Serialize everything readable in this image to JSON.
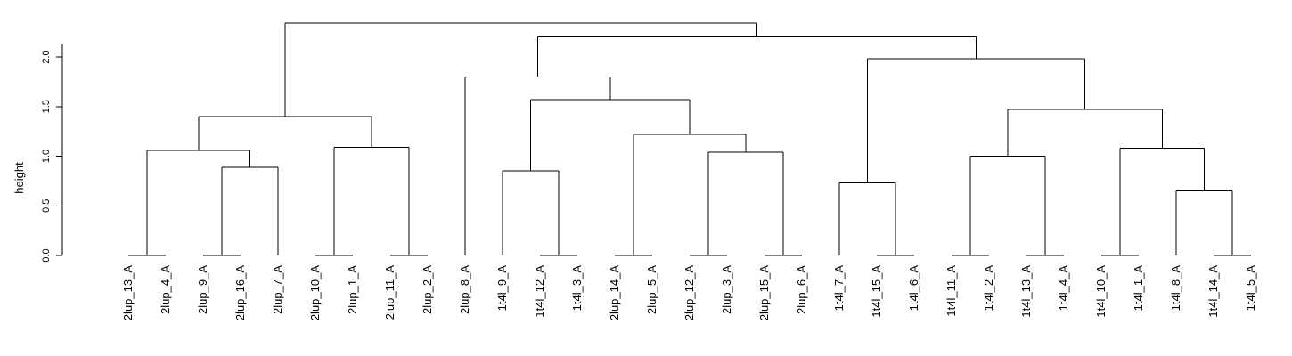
{
  "chart_data": {
    "type": "dendrogram",
    "ylabel": "height",
    "ylim": [
      0,
      2.35
    ],
    "yticks": [
      "0.0",
      "0.5",
      "1.0",
      "1.5",
      "2.0"
    ],
    "leaves": [
      "2lup_13_A",
      "2lup_4_A",
      "2lup_9_A",
      "2lup_16_A",
      "2lup_7_A",
      "2lup_10_A",
      "2lup_1_A",
      "2lup_11_A",
      "2lup_2_A",
      "2lup_8_A",
      "1t4l_9_A",
      "1t4l_12_A",
      "1t4l_3_A",
      "2lup_14_A",
      "2lup_5_A",
      "2lup_12_A",
      "2lup_3_A",
      "2lup_15_A",
      "2lup_6_A",
      "1t4l_7_A",
      "1t4l_15_A",
      "1t4l_6_A",
      "1t4l_11_A",
      "1t4l_2_A",
      "1t4l_13_A",
      "1t4l_4_A",
      "1t4l_10_A",
      "1t4l_1_A",
      "1t4l_8_A",
      "1t4l_14_A",
      "1t4l_5_A"
    ],
    "merges": [
      {
        "left": "2lup_9_A",
        "right": "2lup_16_A",
        "height": 0.0
      },
      {
        "left": "2lup_10_A",
        "right": "2lup_1_A",
        "height": 0.0
      },
      {
        "left": "2lup_11_A",
        "right": "2lup_2_A",
        "height": 0.0
      },
      {
        "left": "2lup_13_A",
        "right": "2lup_4_A",
        "height": 0.0
      },
      {
        "left": "1t4l_12_A",
        "right": "1t4l_3_A",
        "height": 0.0
      },
      {
        "left": "2lup_14_A",
        "right": "2lup_5_A",
        "height": 0.0
      },
      {
        "left": "2lup_12_A",
        "right": "2lup_3_A",
        "height": 0.0
      },
      {
        "left": "2lup_15_A",
        "right": "2lup_6_A",
        "height": 0.0
      },
      {
        "left": "1t4l_15_A",
        "right": "1t4l_6_A",
        "height": 0.0
      },
      {
        "left": "1t4l_11_A",
        "right": "1t4l_2_A",
        "height": 0.0
      },
      {
        "left": "1t4l_13_A",
        "right": "1t4l_4_A",
        "height": 0.0
      },
      {
        "left": "1t4l_10_A",
        "right": "1t4l_1_A",
        "height": 0.0
      },
      {
        "left": "1t4l_14_A",
        "right": "1t4l_5_A",
        "height": 0.0
      },
      {
        "left": "1t4l_8_A",
        "right": "1t4l_14_A+1t4l_5_A",
        "height": 0.65
      },
      {
        "left": "1t4l_7_A",
        "right": "1t4l_15_A+1t4l_6_A",
        "height": 0.73
      },
      {
        "left": "1t4l_9_A",
        "right": "1t4l_12_A+1t4l_3_A",
        "height": 0.85
      },
      {
        "left": "2lup_9_A+2lup_16_A",
        "right": "2lup_7_A",
        "height": 0.89
      },
      {
        "left": "1t4l_11_A+1t4l_2_A",
        "right": "1t4l_13_A+1t4l_4_A",
        "height": 1.0
      },
      {
        "left": "2lup_12_A+2lup_3_A",
        "right": "2lup_15_A+2lup_6_A",
        "height": 1.04
      },
      {
        "left": "2lup_13_A+2lup_4_A",
        "right": "2lup_9_A+2lup_16_A+2lup_7_A",
        "height": 1.06
      },
      {
        "left": "1t4l_10_A+1t4l_1_A",
        "right": "1t4l_8_A+1t4l_14_A+1t4l_5_A",
        "height": 1.08
      },
      {
        "left": "2lup_10_A+2lup_1_A",
        "right": "2lup_11_A+2lup_2_A",
        "height": 1.09
      },
      {
        "left": "2lup_14_A+2lup_5_A",
        "right": "2lup_12_A+2lup_3_A+2lup_15_A+2lup_6_A",
        "height": 1.22
      },
      {
        "left": "2lup_13_A..2lup_7_A",
        "right": "2lup_10_A..2lup_2_A",
        "height": 1.4
      },
      {
        "left": "1t4l_11_A..1t4l_4_A",
        "right": "1t4l_10_A..1t4l_5_A",
        "height": 1.47
      },
      {
        "left": "1t4l_9_A..1t4l_3_A",
        "right": "2lup_14_A..2lup_6_A",
        "height": 1.57
      },
      {
        "left": "2lup_8_A",
        "right": "1t4l_9_A..2lup_6_A",
        "height": 1.8
      },
      {
        "left": "1t4l_7_A..1t4l_6_A",
        "right": "1t4l_11_A..1t4l_5_A",
        "height": 1.98
      },
      {
        "left": "2lup_8_A..2lup_6_A",
        "right": "1t4l_7_A..1t4l_5_A",
        "height": 2.2
      },
      {
        "left": "2lup_13_A..2lup_2_A",
        "right": "2lup_8_A..1t4l_5_A",
        "height": 2.34
      }
    ],
    "tree": {
      "h": 2.34,
      "c": [
        {
          "h": 1.4,
          "c": [
            {
              "h": 1.06,
              "c": [
                {
                  "h": 0.0,
                  "c": [
                    "2lup_13_A",
                    "2lup_4_A"
                  ]
                },
                {
                  "h": 0.89,
                  "c": [
                    {
                      "h": 0.0,
                      "c": [
                        "2lup_9_A",
                        "2lup_16_A"
                      ]
                    },
                    "2lup_7_A"
                  ]
                }
              ]
            },
            {
              "h": 1.09,
              "c": [
                {
                  "h": 0.0,
                  "c": [
                    "2lup_10_A",
                    "2lup_1_A"
                  ]
                },
                {
                  "h": 0.0,
                  "c": [
                    "2lup_11_A",
                    "2lup_2_A"
                  ]
                }
              ]
            }
          ]
        },
        {
          "h": 2.2,
          "c": [
            {
              "h": 1.8,
              "c": [
                "2lup_8_A",
                {
                  "h": 1.57,
                  "c": [
                    {
                      "h": 0.85,
                      "c": [
                        "1t4l_9_A",
                        {
                          "h": 0.0,
                          "c": [
                            "1t4l_12_A",
                            "1t4l_3_A"
                          ]
                        }
                      ]
                    },
                    {
                      "h": 1.22,
                      "c": [
                        {
                          "h": 0.0,
                          "c": [
                            "2lup_14_A",
                            "2lup_5_A"
                          ]
                        },
                        {
                          "h": 1.04,
                          "c": [
                            {
                              "h": 0.0,
                              "c": [
                                "2lup_12_A",
                                "2lup_3_A"
                              ]
                            },
                            {
                              "h": 0.0,
                              "c": [
                                "2lup_15_A",
                                "2lup_6_A"
                              ]
                            }
                          ]
                        }
                      ]
                    }
                  ]
                }
              ]
            },
            {
              "h": 1.98,
              "c": [
                {
                  "h": 0.73,
                  "c": [
                    "1t4l_7_A",
                    {
                      "h": 0.0,
                      "c": [
                        "1t4l_15_A",
                        "1t4l_6_A"
                      ]
                    }
                  ]
                },
                {
                  "h": 1.47,
                  "c": [
                    {
                      "h": 1.0,
                      "c": [
                        {
                          "h": 0.0,
                          "c": [
                            "1t4l_11_A",
                            "1t4l_2_A"
                          ]
                        },
                        {
                          "h": 0.0,
                          "c": [
                            "1t4l_13_A",
                            "1t4l_4_A"
                          ]
                        }
                      ]
                    },
                    {
                      "h": 1.08,
                      "c": [
                        {
                          "h": 0.0,
                          "c": [
                            "1t4l_10_A",
                            "1t4l_1_A"
                          ]
                        },
                        {
                          "h": 0.65,
                          "c": [
                            "1t4l_8_A",
                            {
                              "h": 0.0,
                              "c": [
                                "1t4l_14_A",
                                "1t4l_5_A"
                              ]
                            }
                          ]
                        }
                      ]
                    }
                  ]
                }
              ]
            }
          ]
        }
      ]
    }
  }
}
